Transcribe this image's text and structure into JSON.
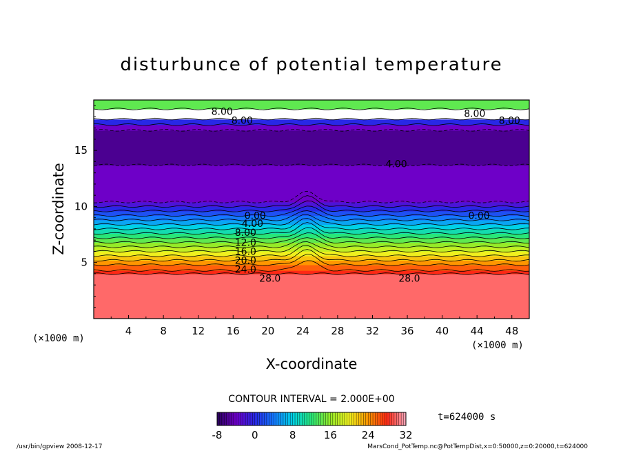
{
  "chart_data": {
    "type": "heatmap",
    "title": "disturbunce of potential temperature",
    "xlabel": "X-coordinate",
    "ylabel": "Z-coordinate",
    "x_unit": "(×1000 m)",
    "z_unit": "(×1000 m)",
    "xlim": [
      0,
      50
    ],
    "ylim": [
      0,
      19.5
    ],
    "x_ticks": [
      4,
      8,
      12,
      16,
      20,
      24,
      28,
      32,
      36,
      40,
      44,
      48
    ],
    "y_ticks": [
      5,
      10,
      15
    ],
    "color_range": [
      -8,
      32
    ],
    "colorbar_ticks": [
      -8,
      0,
      8,
      16,
      24,
      32
    ],
    "contour_interval_text": "CONTOUR INTERVAL = 2.000E+00",
    "time_text": "t=624000  s",
    "layers": [
      {
        "z_from": 0,
        "z_to": 4.0,
        "value": 30
      },
      {
        "z_from": 4.0,
        "z_to": 4.3,
        "value": 28
      },
      {
        "z_from": 4.3,
        "z_to": 4.8,
        "value": 26
      },
      {
        "z_from": 4.8,
        "z_to": 5.2,
        "value": 24
      },
      {
        "z_from": 5.2,
        "z_to": 5.6,
        "value": 22
      },
      {
        "z_from": 5.6,
        "z_to": 6.0,
        "value": 20
      },
      {
        "z_from": 6.0,
        "z_to": 6.4,
        "value": 18
      },
      {
        "z_from": 6.4,
        "z_to": 6.8,
        "value": 16
      },
      {
        "z_from": 6.8,
        "z_to": 7.2,
        "value": 14
      },
      {
        "z_from": 7.2,
        "z_to": 7.6,
        "value": 12
      },
      {
        "z_from": 7.6,
        "z_to": 8.0,
        "value": 10
      },
      {
        "z_from": 8.0,
        "z_to": 8.4,
        "value": 8
      },
      {
        "z_from": 8.4,
        "z_to": 8.8,
        "value": 6
      },
      {
        "z_from": 8.8,
        "z_to": 9.2,
        "value": 4
      },
      {
        "z_from": 9.2,
        "z_to": 9.6,
        "value": 2
      },
      {
        "z_from": 9.6,
        "z_to": 10.0,
        "value": 0
      },
      {
        "z_from": 10.0,
        "z_to": 10.4,
        "value": -2
      },
      {
        "z_from": 10.4,
        "z_to": 13.7,
        "value": -4
      },
      {
        "z_from": 13.7,
        "z_to": 16.8,
        "value": -6
      },
      {
        "z_from": 16.8,
        "z_to": 17.3,
        "value": -4
      },
      {
        "z_from": 17.3,
        "z_to": 17.8,
        "value": 0
      },
      {
        "z_from": 17.8,
        "z_to": 18.7,
        "value": 33
      },
      {
        "z_from": 18.7,
        "z_to": 19.5,
        "value": 14
      }
    ],
    "contour_labels": [
      {
        "text": "8.00",
        "x": 13.5,
        "z": 18.5
      },
      {
        "text": "8.00",
        "x": 15.8,
        "z": 17.7
      },
      {
        "text": "8.00",
        "x": 46.5,
        "z": 17.7
      },
      {
        "text": "8.00",
        "x": 42.5,
        "z": 18.3
      },
      {
        "text": "4.00",
        "x": 33.5,
        "z": 13.8
      },
      {
        "text": "0.00",
        "x": 17.3,
        "z": 9.2
      },
      {
        "text": "0.00",
        "x": 43.0,
        "z": 9.2
      },
      {
        "text": "4.00",
        "x": 17.0,
        "z": 8.5
      },
      {
        "text": "8.00",
        "x": 16.2,
        "z": 7.7
      },
      {
        "text": "12.0",
        "x": 16.2,
        "z": 6.8
      },
      {
        "text": "16.0",
        "x": 16.2,
        "z": 6.0
      },
      {
        "text": "20.0",
        "x": 16.2,
        "z": 5.2
      },
      {
        "text": "24.0",
        "x": 16.2,
        "z": 4.4
      },
      {
        "text": "28.0",
        "x": 19.0,
        "z": 3.6
      },
      {
        "text": "28.0",
        "x": 35.0,
        "z": 3.6
      }
    ]
  },
  "footer": {
    "left": "/usr/bin/gpview   2008-12-17",
    "right": "MarsCond_PotTemp.nc@PotTempDist,x=0:50000,z=0:20000,t=624000"
  }
}
